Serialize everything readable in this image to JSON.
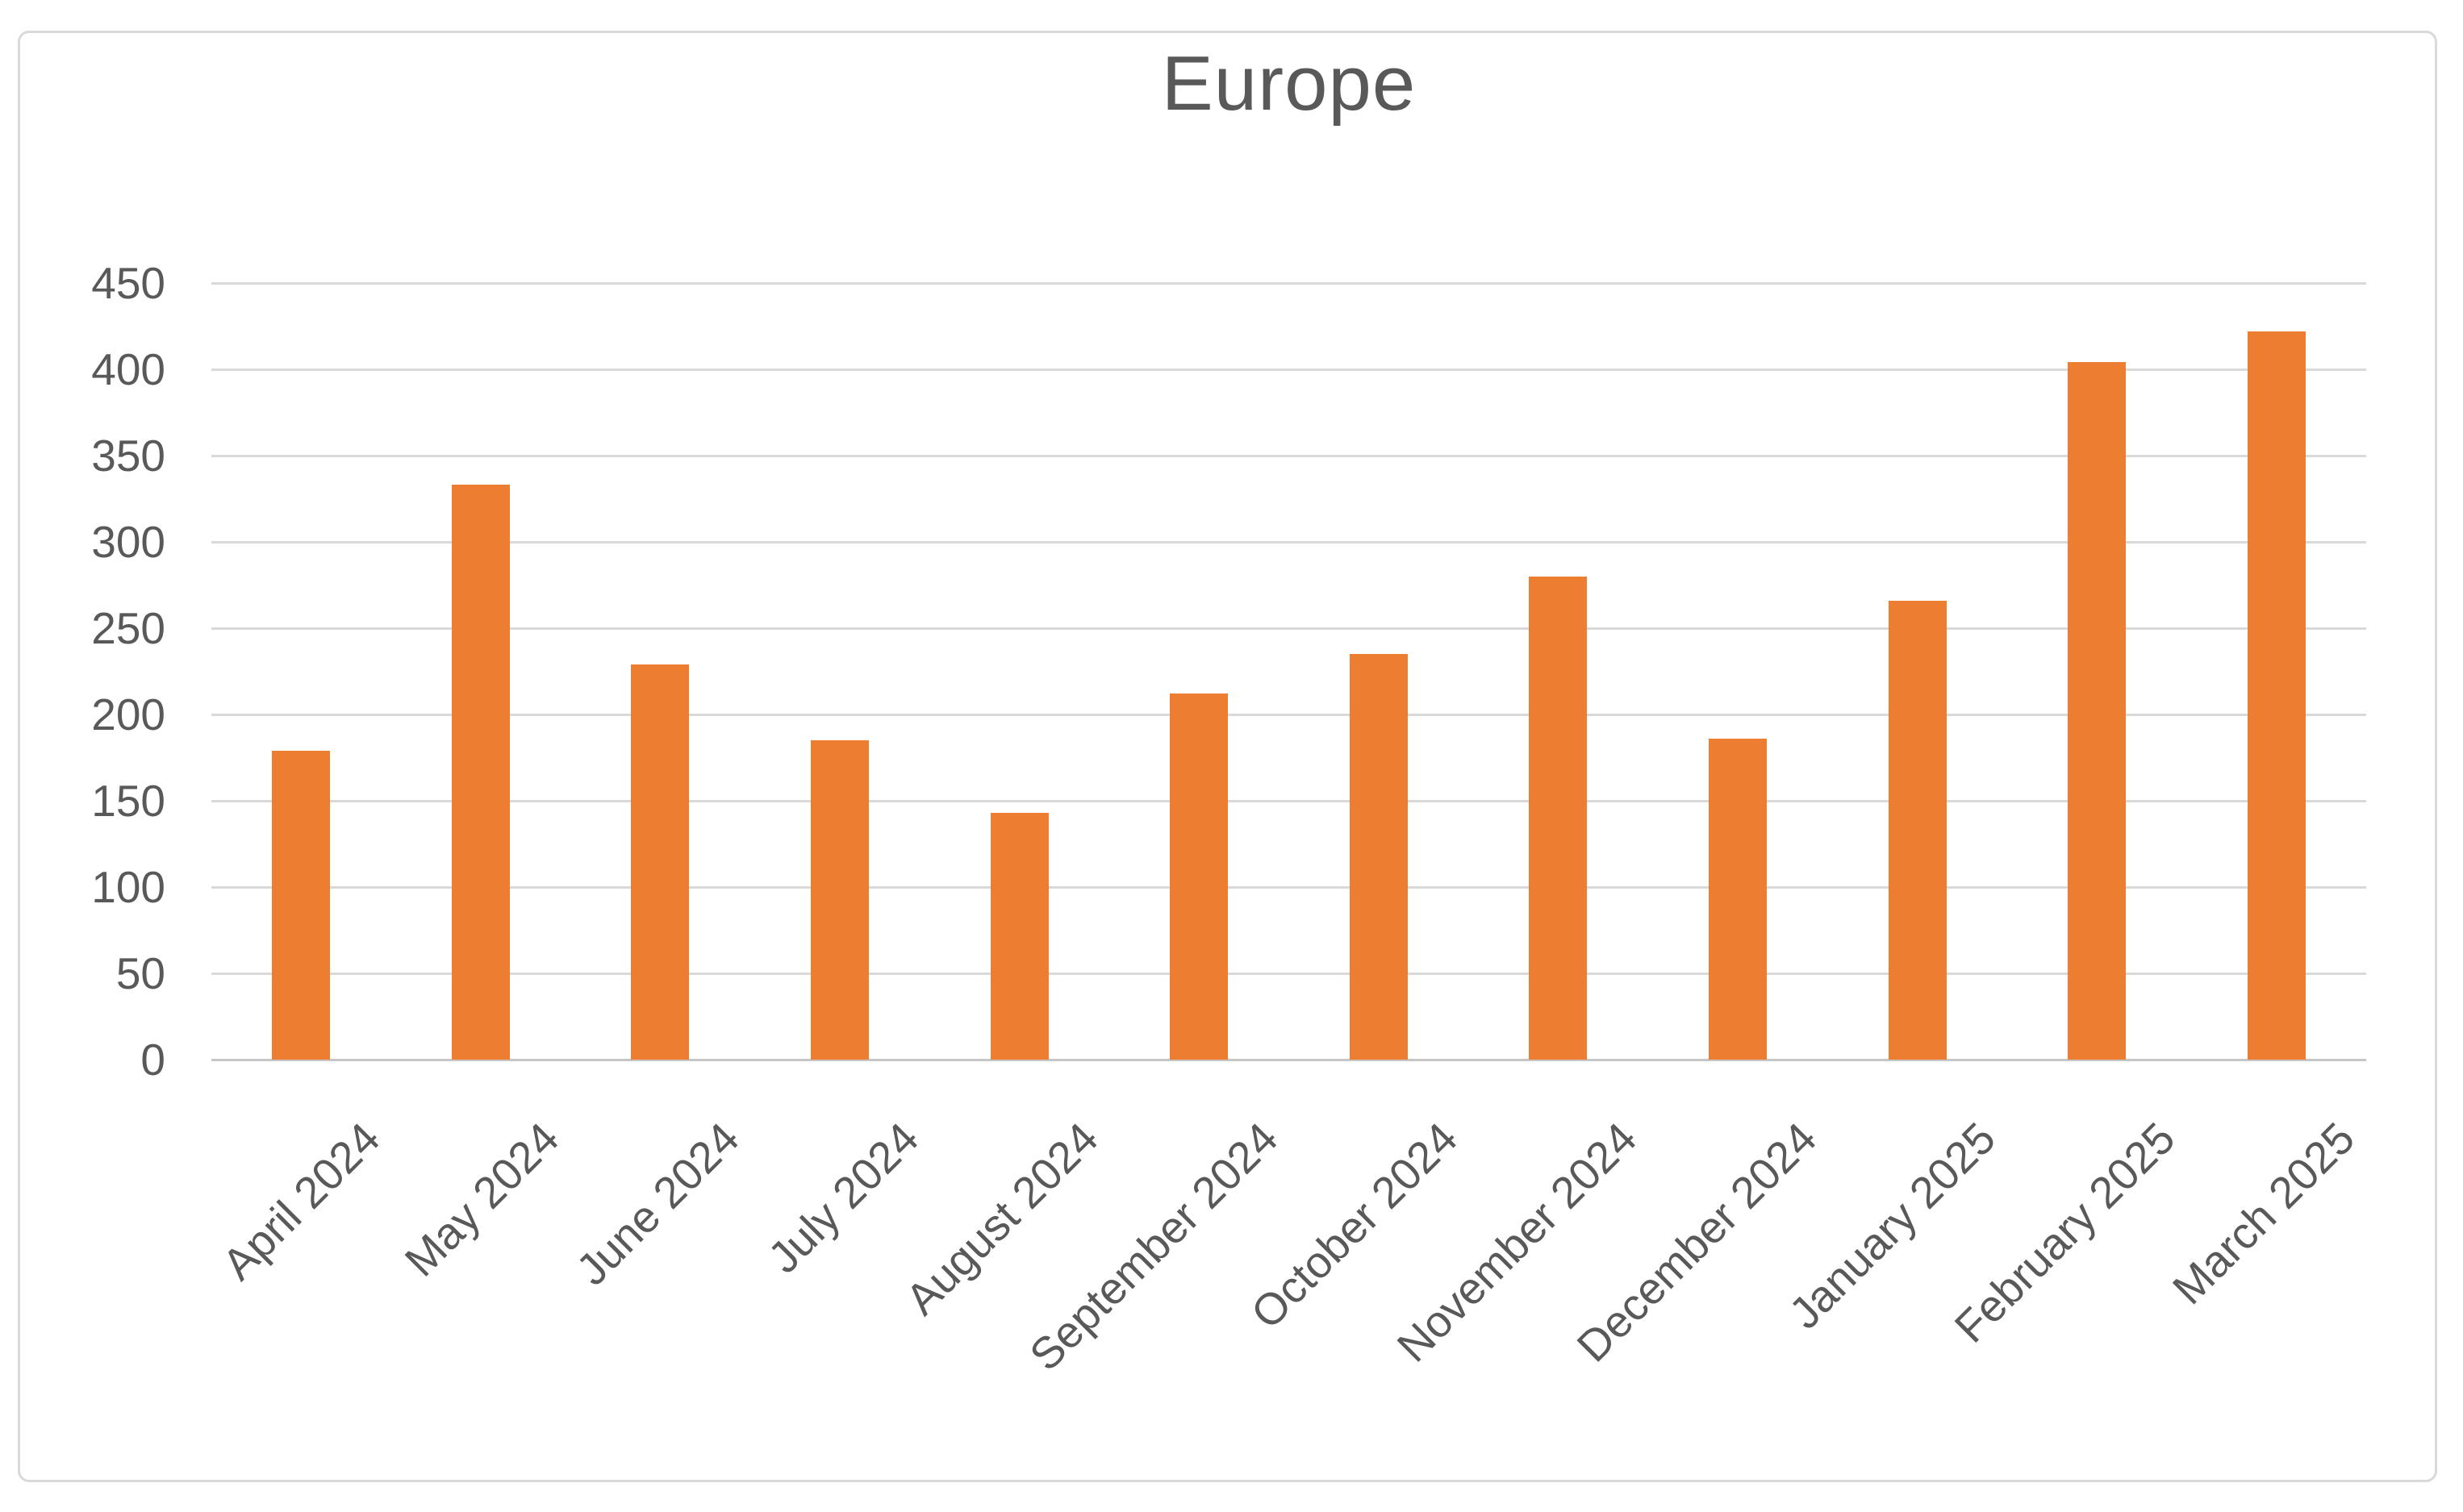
{
  "title": "Europe",
  "colors": {
    "bar": "#ED7D31",
    "gridline": "#D9D9D9",
    "axis_line": "#C6C6C6",
    "text": "#595959",
    "border": "#D9D9D9",
    "background": "#FFFFFF"
  },
  "chart_data": {
    "type": "bar",
    "title": "Europe",
    "categories": [
      "April 2024",
      "May 2024",
      "June 2024",
      "July 2024",
      "August 2024",
      "September 2024",
      "October 2024",
      "November 2024",
      "December 2024",
      "January 2025",
      "February 2025",
      "March 2025"
    ],
    "values": [
      179,
      333,
      229,
      185,
      143,
      212,
      235,
      280,
      186,
      266,
      404,
      422
    ],
    "xlabel": "",
    "ylabel": "",
    "ylim": [
      0,
      450
    ],
    "ytick_step": 50,
    "yticks": [
      450,
      400,
      350,
      300,
      250,
      200,
      150,
      100,
      50,
      0
    ],
    "grid": true,
    "legend": false,
    "x_label_rotation_deg": 45,
    "series_name": "Europe"
  }
}
